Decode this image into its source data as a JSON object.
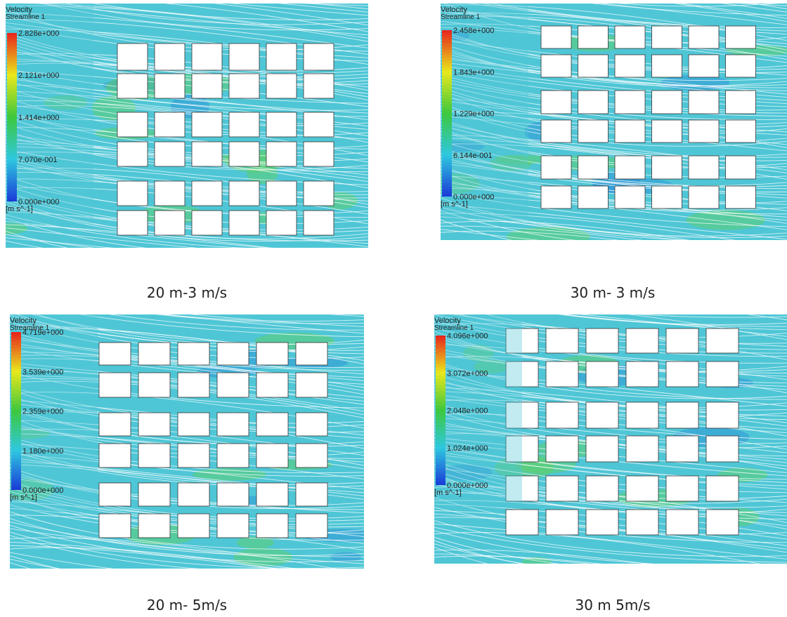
{
  "panels": [
    {
      "title": "Velocity",
      "subtitle": "Streamline 1",
      "legend": [
        "2.828e+000",
        "2.121e+000",
        "1.414e+000",
        "7.070e-001",
        "0.000e+000"
      ],
      "unit": "[m s^-1]",
      "caption": "20 m-3 m/s"
    },
    {
      "title": "Velocity",
      "subtitle": "Streamline 1",
      "legend": [
        "2.458e+000",
        "1.843e+000",
        "1.229e+000",
        "6.144e-001",
        "0.000e+000"
      ],
      "unit": "[m s^-1]",
      "caption": "30 m- 3 m/s"
    },
    {
      "title": "Velocity",
      "subtitle": "Streamline 1",
      "legend": [
        "4.719e+000",
        "3.539e+000",
        "2.359e+000",
        "1.180e+000",
        "0.000e+000"
      ],
      "unit": "[m s^-1]",
      "caption": "20 m- 5m/s"
    },
    {
      "title": "Velocity",
      "subtitle": "Streamline 1",
      "legend": [
        "4.096e+000",
        "3.072e+000",
        "2.048e+000",
        "1.024e+000",
        "0.000e+000"
      ],
      "unit": "[m s^-1]",
      "caption": "30 m 5m/s"
    }
  ]
}
